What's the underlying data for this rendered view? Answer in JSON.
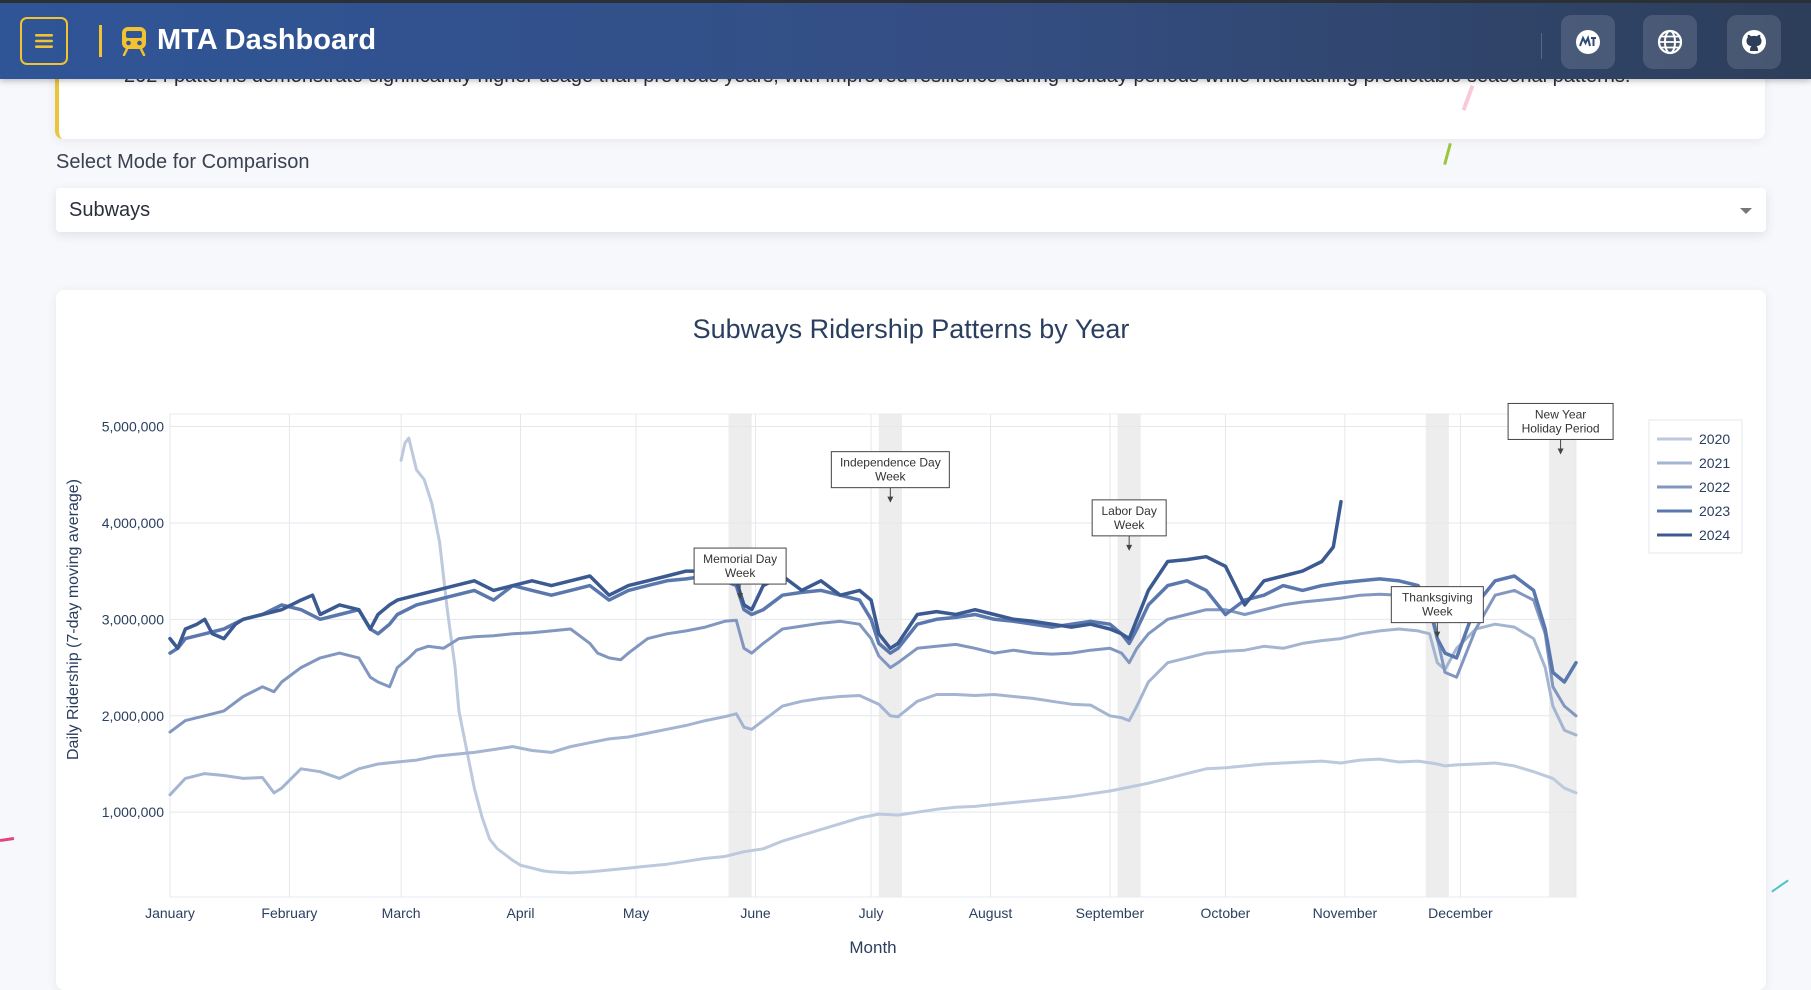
{
  "header": {
    "title": "MTA Dashboard",
    "icons": [
      "menu-icon",
      "train-icon",
      "mta-logo-icon",
      "globe-icon",
      "github-icon"
    ],
    "colors": {
      "accent": "#f2c230",
      "bar_start": "#2f5597",
      "bar_end": "#2d3e5a"
    }
  },
  "insight": {
    "text": "2024 patterns demonstrate significantly higher usage than previous years, with improved resilience during holiday periods while maintaining predictable seasonal patterns."
  },
  "mode_select": {
    "label": "Select Mode for Comparison",
    "value": "Subways"
  },
  "chart_data": {
    "type": "line",
    "title": "Subways Ridership Patterns by Year",
    "xlabel": "Month",
    "ylabel": "Daily Ridership (7-day moving average)",
    "x_domain": [
      1,
      366
    ],
    "ylim": [
      120000,
      5130000
    ],
    "yticks": [
      1000000,
      2000000,
      3000000,
      4000000,
      5000000
    ],
    "ytick_labels": [
      "1,000,000",
      "2,000,000",
      "3,000,000",
      "4,000,000",
      "5,000,000"
    ],
    "xticks": [
      1,
      32,
      61,
      92,
      122,
      153,
      183,
      214,
      245,
      275,
      306,
      336
    ],
    "xtick_labels": [
      "January",
      "February",
      "March",
      "April",
      "May",
      "June",
      "July",
      "August",
      "September",
      "October",
      "November",
      "December"
    ],
    "grid": true,
    "legend_position": "top-right",
    "holiday_bands": [
      {
        "start": 146,
        "end": 152
      },
      {
        "start": 185,
        "end": 191
      },
      {
        "start": 247,
        "end": 253
      },
      {
        "start": 327,
        "end": 333
      },
      {
        "start": 359,
        "end": 366
      }
    ],
    "annotations": [
      {
        "lines": [
          "Memorial Day",
          "Week"
        ],
        "x": 149,
        "y": 3200000
      },
      {
        "lines": [
          "Independence Day",
          "Week"
        ],
        "x": 188,
        "y": 4200000
      },
      {
        "lines": [
          "Labor Day",
          "Week"
        ],
        "x": 250,
        "y": 3700000
      },
      {
        "lines": [
          "Thanksgiving",
          "Week"
        ],
        "x": 330,
        "y": 2800000
      },
      {
        "lines": [
          "New Year",
          "Holiday Period"
        ],
        "x": 362,
        "y": 4700000
      }
    ],
    "series": [
      {
        "name": "2020",
        "color": "#bdc9dd",
        "width": 3,
        "x": [
          61,
          62,
          63,
          65,
          67,
          69,
          71,
          73,
          75,
          76,
          78,
          80,
          82,
          84,
          86,
          88,
          90,
          92,
          95,
          98,
          100,
          105,
          110,
          115,
          120,
          125,
          130,
          135,
          140,
          145,
          150,
          155,
          160,
          165,
          170,
          175,
          180,
          185,
          190,
          195,
          200,
          205,
          210,
          215,
          220,
          225,
          230,
          235,
          240,
          245,
          250,
          255,
          260,
          265,
          270,
          275,
          280,
          285,
          290,
          295,
          300,
          305,
          310,
          315,
          320,
          325,
          330,
          332,
          335,
          340,
          345,
          350,
          355,
          360,
          363,
          366
        ],
        "y": [
          4650000,
          4830000,
          4880000,
          4550000,
          4450000,
          4200000,
          3800000,
          3100000,
          2500000,
          2050000,
          1650000,
          1250000,
          950000,
          720000,
          620000,
          560000,
          500000,
          450000,
          420000,
          390000,
          380000,
          370000,
          380000,
          400000,
          420000,
          440000,
          460000,
          490000,
          520000,
          540000,
          590000,
          620000,
          700000,
          760000,
          820000,
          880000,
          940000,
          980000,
          970000,
          1000000,
          1030000,
          1050000,
          1060000,
          1080000,
          1100000,
          1120000,
          1140000,
          1160000,
          1190000,
          1220000,
          1260000,
          1300000,
          1350000,
          1400000,
          1450000,
          1460000,
          1480000,
          1500000,
          1510000,
          1520000,
          1530000,
          1510000,
          1540000,
          1550000,
          1520000,
          1530000,
          1500000,
          1480000,
          1490000,
          1500000,
          1510000,
          1480000,
          1420000,
          1350000,
          1250000,
          1200000
        ]
      },
      {
        "name": "2021",
        "color": "#a4b5d1",
        "width": 3,
        "x": [
          1,
          5,
          10,
          15,
          20,
          25,
          28,
          30,
          35,
          40,
          45,
          50,
          55,
          60,
          65,
          70,
          75,
          80,
          85,
          90,
          95,
          100,
          105,
          110,
          115,
          120,
          125,
          130,
          135,
          140,
          145,
          148,
          150,
          152,
          155,
          160,
          165,
          170,
          175,
          180,
          185,
          188,
          190,
          195,
          200,
          205,
          210,
          215,
          220,
          225,
          230,
          235,
          240,
          245,
          248,
          250,
          252,
          255,
          260,
          265,
          270,
          275,
          280,
          285,
          290,
          295,
          300,
          305,
          310,
          315,
          320,
          325,
          328,
          330,
          332,
          335,
          340,
          345,
          350,
          355,
          358,
          360,
          363,
          366
        ],
        "y": [
          1180000,
          1350000,
          1400000,
          1380000,
          1350000,
          1360000,
          1200000,
          1250000,
          1450000,
          1420000,
          1350000,
          1450000,
          1500000,
          1520000,
          1540000,
          1580000,
          1600000,
          1620000,
          1650000,
          1680000,
          1640000,
          1620000,
          1680000,
          1720000,
          1760000,
          1780000,
          1820000,
          1860000,
          1900000,
          1950000,
          1990000,
          2020000,
          1880000,
          1860000,
          1950000,
          2100000,
          2150000,
          2180000,
          2200000,
          2210000,
          2120000,
          2000000,
          1990000,
          2150000,
          2220000,
          2220000,
          2210000,
          2220000,
          2200000,
          2180000,
          2150000,
          2120000,
          2110000,
          2000000,
          1980000,
          1950000,
          2100000,
          2350000,
          2550000,
          2600000,
          2650000,
          2670000,
          2680000,
          2720000,
          2700000,
          2750000,
          2780000,
          2800000,
          2850000,
          2880000,
          2900000,
          2880000,
          2850000,
          2550000,
          2480000,
          2700000,
          2900000,
          2950000,
          2920000,
          2800000,
          2500000,
          2100000,
          1850000,
          1800000
        ]
      },
      {
        "name": "2022",
        "color": "#8197c0",
        "width": 3,
        "x": [
          1,
          5,
          10,
          15,
          20,
          25,
          28,
          30,
          35,
          40,
          45,
          50,
          53,
          55,
          58,
          60,
          63,
          65,
          68,
          72,
          76,
          80,
          85,
          90,
          95,
          100,
          105,
          110,
          112,
          115,
          118,
          120,
          125,
          130,
          135,
          140,
          145,
          148,
          150,
          152,
          155,
          160,
          165,
          170,
          175,
          180,
          183,
          185,
          188,
          190,
          195,
          200,
          205,
          210,
          215,
          220,
          225,
          230,
          235,
          240,
          245,
          248,
          250,
          252,
          255,
          260,
          265,
          270,
          275,
          280,
          285,
          290,
          295,
          300,
          305,
          310,
          315,
          320,
          325,
          328,
          330,
          332,
          335,
          340,
          345,
          350,
          355,
          358,
          360,
          363,
          366
        ],
        "y": [
          1830000,
          1950000,
          2000000,
          2050000,
          2200000,
          2300000,
          2250000,
          2350000,
          2500000,
          2600000,
          2650000,
          2600000,
          2400000,
          2350000,
          2300000,
          2500000,
          2600000,
          2680000,
          2720000,
          2700000,
          2800000,
          2820000,
          2830000,
          2850000,
          2860000,
          2880000,
          2900000,
          2750000,
          2650000,
          2600000,
          2580000,
          2650000,
          2800000,
          2850000,
          2880000,
          2920000,
          2980000,
          2990000,
          2700000,
          2650000,
          2750000,
          2900000,
          2930000,
          2960000,
          2980000,
          2950000,
          2800000,
          2620000,
          2500000,
          2550000,
          2700000,
          2720000,
          2740000,
          2700000,
          2650000,
          2680000,
          2650000,
          2640000,
          2650000,
          2680000,
          2700000,
          2650000,
          2550000,
          2700000,
          2850000,
          3000000,
          3050000,
          3100000,
          3100000,
          3050000,
          3100000,
          3150000,
          3180000,
          3200000,
          3220000,
          3250000,
          3260000,
          3250000,
          3220000,
          3100000,
          2800000,
          2450000,
          2400000,
          2900000,
          3250000,
          3300000,
          3200000,
          2850000,
          2300000,
          2100000,
          2000000
        ]
      },
      {
        "name": "2023",
        "color": "#5a78ae",
        "width": 3.5,
        "x": [
          1,
          3,
          5,
          10,
          15,
          20,
          25,
          30,
          35,
          40,
          45,
          50,
          53,
          55,
          58,
          60,
          65,
          70,
          75,
          80,
          85,
          90,
          95,
          100,
          105,
          110,
          115,
          120,
          125,
          130,
          135,
          140,
          145,
          148,
          150,
          152,
          155,
          160,
          165,
          170,
          175,
          180,
          183,
          185,
          188,
          190,
          195,
          200,
          205,
          210,
          215,
          220,
          225,
          230,
          235,
          240,
          245,
          248,
          250,
          252,
          255,
          260,
          265,
          270,
          275,
          280,
          285,
          290,
          295,
          300,
          305,
          310,
          315,
          320,
          325,
          328,
          330,
          332,
          335,
          340,
          345,
          350,
          355,
          358,
          360,
          363,
          366
        ],
        "y": [
          2650000,
          2700000,
          2800000,
          2850000,
          2900000,
          3000000,
          3050000,
          3150000,
          3100000,
          3000000,
          3050000,
          3100000,
          2900000,
          2850000,
          2950000,
          3050000,
          3150000,
          3200000,
          3250000,
          3300000,
          3200000,
          3350000,
          3300000,
          3250000,
          3300000,
          3350000,
          3200000,
          3300000,
          3350000,
          3400000,
          3420000,
          3450000,
          3400000,
          3350000,
          3100000,
          3050000,
          3100000,
          3250000,
          3280000,
          3300000,
          3250000,
          3200000,
          3000000,
          2750000,
          2650000,
          2700000,
          2950000,
          3000000,
          3020000,
          3050000,
          3000000,
          2980000,
          2950000,
          2920000,
          2950000,
          2980000,
          2950000,
          2850000,
          2750000,
          2900000,
          3150000,
          3350000,
          3400000,
          3300000,
          3050000,
          3200000,
          3250000,
          3350000,
          3300000,
          3350000,
          3380000,
          3400000,
          3420000,
          3400000,
          3350000,
          3150000,
          2800000,
          2650000,
          2600000,
          3150000,
          3400000,
          3450000,
          3300000,
          2900000,
          2450000,
          2350000,
          2550000
        ]
      },
      {
        "name": "2024",
        "color": "#3c5a92",
        "width": 3.5,
        "x": [
          1,
          3,
          5,
          8,
          10,
          12,
          15,
          18,
          20,
          25,
          30,
          35,
          38,
          40,
          45,
          50,
          53,
          55,
          58,
          60,
          65,
          70,
          75,
          80,
          85,
          90,
          95,
          100,
          105,
          110,
          115,
          120,
          125,
          130,
          135,
          140,
          145,
          148,
          150,
          152,
          155,
          160,
          165,
          170,
          175,
          180,
          183,
          185,
          188,
          190,
          195,
          200,
          205,
          210,
          215,
          220,
          225,
          230,
          235,
          240,
          245,
          248,
          250,
          252,
          255,
          260,
          265,
          270,
          275,
          280,
          285,
          290,
          295,
          300,
          302,
          303,
          305
        ],
        "y": [
          2800000,
          2700000,
          2900000,
          2950000,
          3000000,
          2850000,
          2800000,
          2950000,
          3000000,
          3050000,
          3100000,
          3200000,
          3250000,
          3050000,
          3150000,
          3100000,
          2900000,
          3050000,
          3150000,
          3200000,
          3250000,
          3300000,
          3350000,
          3400000,
          3300000,
          3350000,
          3400000,
          3350000,
          3400000,
          3450000,
          3250000,
          3350000,
          3400000,
          3450000,
          3500000,
          3500000,
          3450000,
          3400000,
          3150000,
          3100000,
          3350000,
          3450000,
          3300000,
          3400000,
          3250000,
          3300000,
          3200000,
          2850000,
          2700000,
          2750000,
          3050000,
          3080000,
          3050000,
          3100000,
          3050000,
          3000000,
          2980000,
          2950000,
          2920000,
          2950000,
          2900000,
          2850000,
          2800000,
          3000000,
          3300000,
          3600000,
          3620000,
          3650000,
          3550000,
          3150000,
          3400000,
          3450000,
          3500000,
          3600000,
          3700000,
          3750000,
          4220000
        ]
      }
    ]
  }
}
